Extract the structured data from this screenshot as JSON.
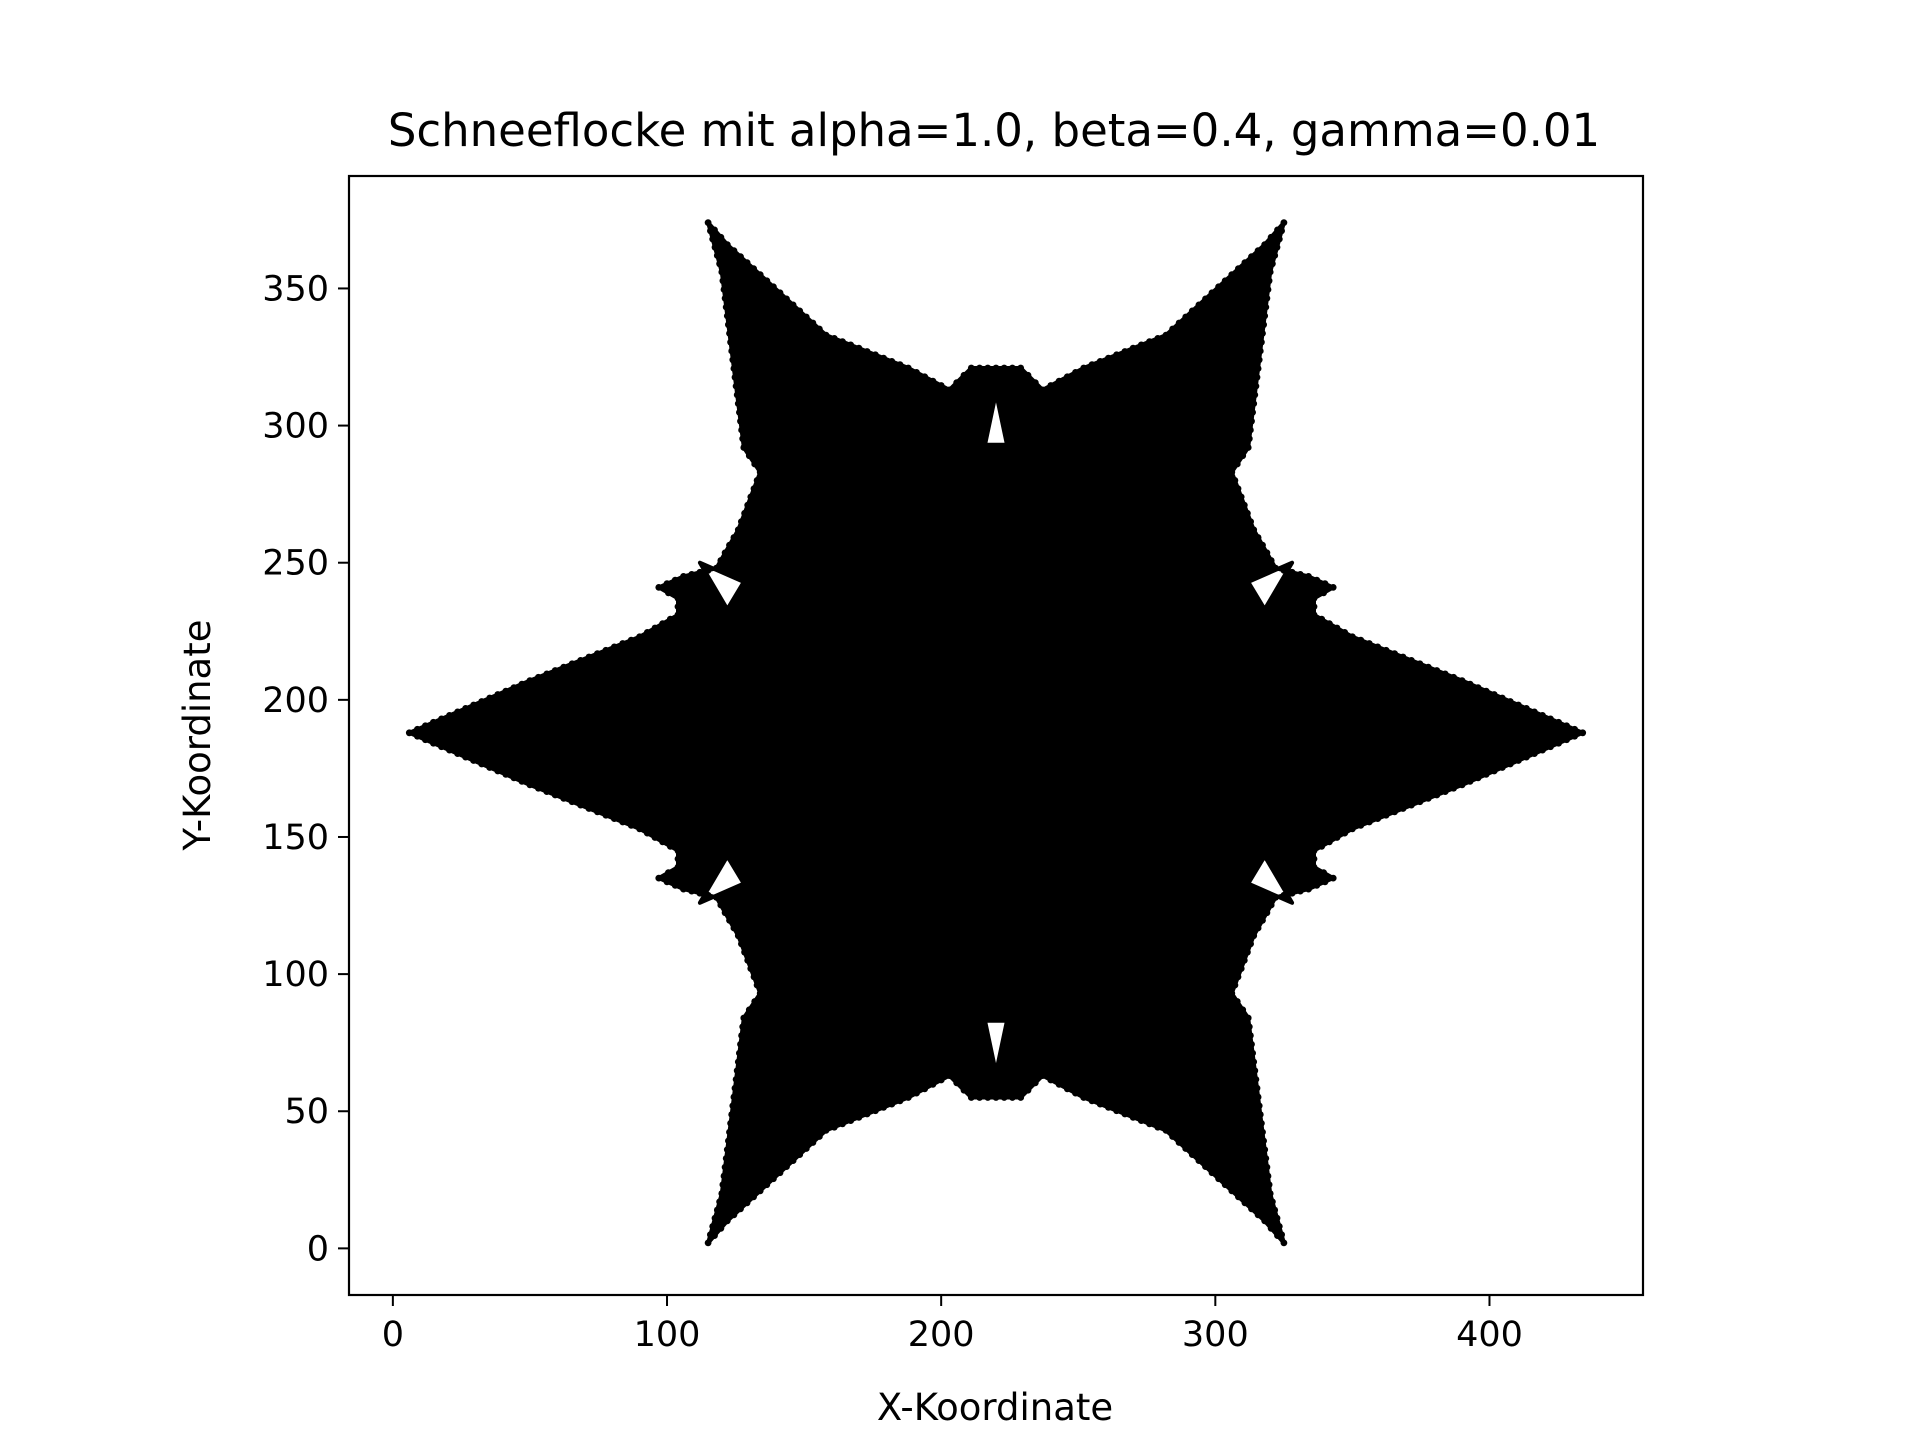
{
  "chart_data": {
    "type": "scatter",
    "title": "Schneeflocke mit alpha=1.0, beta=0.4, gamma=0.01",
    "xlabel": "X-Koordinate",
    "ylabel": "Y-Koordinate",
    "xlim": [
      -16,
      456
    ],
    "ylim": [
      -17,
      391
    ],
    "xticks": [
      0,
      100,
      200,
      300,
      400
    ],
    "yticks": [
      0,
      50,
      100,
      150,
      200,
      250,
      300,
      350
    ],
    "xtick_labels": [
      "0",
      "100",
      "200",
      "300",
      "400"
    ],
    "ytick_labels": [
      "0",
      "50",
      "100",
      "150",
      "200",
      "250",
      "300",
      "350"
    ],
    "grid": false,
    "legend": "none",
    "marker_color": "#000000",
    "background_color": "#ffffff",
    "center": [
      220,
      188
    ],
    "outline": [
      [
        434,
        188
      ],
      [
        390,
        207
      ],
      [
        350,
        223
      ],
      [
        336,
        231
      ],
      [
        336,
        237
      ],
      [
        343,
        241
      ],
      [
        334,
        245
      ],
      [
        322,
        248
      ],
      [
        314,
        262
      ],
      [
        306,
        283
      ],
      [
        312,
        292
      ],
      [
        320,
        356
      ],
      [
        325,
        374
      ],
      [
        318,
        366
      ],
      [
        282,
        333
      ],
      [
        252,
        321
      ],
      [
        237,
        313
      ],
      [
        229,
        321
      ],
      [
        220,
        321
      ],
      [
        211,
        321
      ],
      [
        203,
        313
      ],
      [
        188,
        321
      ],
      [
        158,
        333
      ],
      [
        122,
        366
      ],
      [
        115,
        374
      ],
      [
        120,
        356
      ],
      [
        128,
        292
      ],
      [
        134,
        283
      ],
      [
        126,
        262
      ],
      [
        118,
        248
      ],
      [
        106,
        245
      ],
      [
        97,
        241
      ],
      [
        104,
        237
      ],
      [
        104,
        231
      ],
      [
        90,
        223
      ],
      [
        50,
        207
      ],
      [
        6,
        188
      ],
      [
        50,
        169
      ],
      [
        90,
        153
      ],
      [
        104,
        145
      ],
      [
        104,
        139
      ],
      [
        97,
        135
      ],
      [
        106,
        131
      ],
      [
        118,
        128
      ],
      [
        126,
        114
      ],
      [
        134,
        93
      ],
      [
        128,
        84
      ],
      [
        120,
        20
      ],
      [
        115,
        2
      ],
      [
        122,
        10
      ],
      [
        158,
        43
      ],
      [
        188,
        55
      ],
      [
        203,
        63
      ],
      [
        211,
        55
      ],
      [
        220,
        55
      ],
      [
        229,
        55
      ],
      [
        237,
        63
      ],
      [
        252,
        55
      ],
      [
        282,
        43
      ],
      [
        318,
        10
      ],
      [
        325,
        2
      ],
      [
        320,
        20
      ],
      [
        312,
        84
      ],
      [
        306,
        93
      ],
      [
        314,
        114
      ],
      [
        322,
        128
      ],
      [
        334,
        131
      ],
      [
        343,
        135
      ],
      [
        336,
        139
      ],
      [
        336,
        145
      ],
      [
        350,
        153
      ],
      [
        390,
        169
      ]
    ],
    "holes": [
      [
        [
          216,
          293
        ],
        [
          224,
          293
        ],
        [
          220,
          312
        ]
      ],
      [
        [
          216,
          83
        ],
        [
          224,
          83
        ],
        [
          220,
          64
        ]
      ],
      [
        [
          122,
          233
        ],
        [
          128,
          243
        ],
        [
          112,
          250
        ]
      ],
      [
        [
          122,
          143
        ],
        [
          128,
          133
        ],
        [
          112,
          126
        ]
      ],
      [
        [
          318,
          233
        ],
        [
          312,
          243
        ],
        [
          328,
          250
        ]
      ],
      [
        [
          318,
          143
        ],
        [
          312,
          133
        ],
        [
          328,
          126
        ]
      ]
    ]
  }
}
